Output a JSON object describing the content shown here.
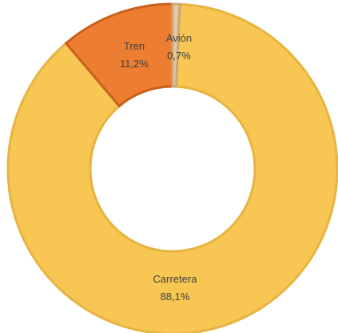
{
  "chart_data": {
    "type": "pie",
    "variant": "doughnut",
    "legend": "none",
    "slices": [
      {
        "label": "Carretera",
        "value_text": "88,1%",
        "value": 88.1,
        "color": "#F7C653",
        "stroke": "#E6B440"
      },
      {
        "label": "Tren",
        "value_text": "11,2%",
        "value": 11.2,
        "color": "#ED7D31",
        "stroke": "#C8611B"
      },
      {
        "label": "Avión",
        "value_text": "0,7%",
        "value": 0.7,
        "color": "#E8C8A0",
        "stroke": "#C9A878"
      }
    ]
  }
}
